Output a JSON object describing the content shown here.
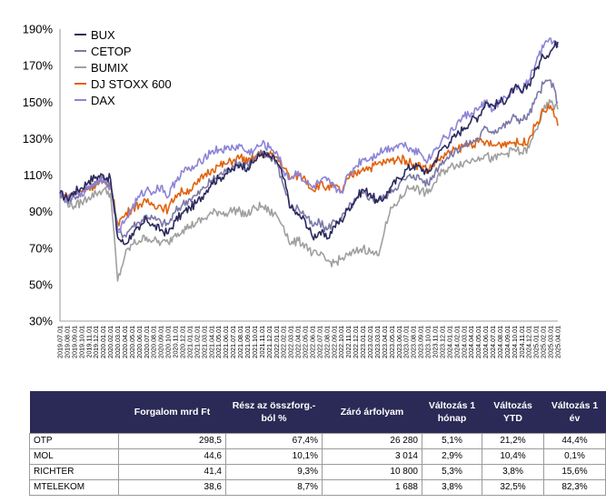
{
  "chart_data": {
    "type": "line",
    "ylim": [
      30,
      190
    ],
    "yticks": [
      "30%",
      "50%",
      "70%",
      "90%",
      "110%",
      "130%",
      "150%",
      "170%",
      "190%"
    ],
    "ytick_values": [
      30,
      50,
      70,
      90,
      110,
      130,
      150,
      170,
      190
    ],
    "grid": false,
    "legend": "top-left",
    "x_labels": [
      "2019.07.01",
      "2019.08.01",
      "2019.09.01",
      "2019.10.01",
      "2019.11.01",
      "2019.12.01",
      "2020.01.01",
      "2020.02.01",
      "2020.03.01",
      "2020.04.01",
      "2020.05.01",
      "2020.06.01",
      "2020.07.01",
      "2020.08.01",
      "2020.09.01",
      "2020.10.01",
      "2020.11.01",
      "2020.12.01",
      "2021.01.01",
      "2021.02.01",
      "2021.03.01",
      "2021.04.01",
      "2021.05.01",
      "2021.06.01",
      "2021.07.01",
      "2021.08.01",
      "2021.09.01",
      "2021.10.01",
      "2021.11.01",
      "2021.12.01",
      "2022.01.01",
      "2022.02.01",
      "2022.03.01",
      "2022.04.01",
      "2022.05.01",
      "2022.06.01",
      "2022.07.01",
      "2022.08.01",
      "2022.09.01",
      "2022.10.01",
      "2022.11.01",
      "2022.12.01",
      "2023.01.01",
      "2023.02.01",
      "2023.03.01",
      "2023.04.01",
      "2023.05.01",
      "2023.06.01",
      "2023.07.01",
      "2023.08.01",
      "2023.09.01",
      "2023.10.01",
      "2023.11.01",
      "2023.12.01",
      "2024.01.01",
      "2024.02.01",
      "2024.03.01",
      "2024.04.01",
      "2024.05.01",
      "2024.06.01",
      "2024.07.01",
      "2024.08.01",
      "2024.09.01",
      "2024.10.01",
      "2024.11.01",
      "2024.12.01",
      "2025.01.01",
      "2025.02.01",
      "2025.03.01",
      "2025.04.01"
    ],
    "x_label_every": 1,
    "series": [
      {
        "name": "BUX",
        "color": "#2b2a5c",
        "values": [
          100,
          97,
          101,
          103,
          107,
          109,
          110,
          108,
          76,
          72,
          78,
          80,
          86,
          82,
          80,
          78,
          85,
          89,
          92,
          95,
          100,
          106,
          108,
          111,
          113,
          116,
          114,
          118,
          122,
          120,
          118,
          108,
          92,
          88,
          85,
          76,
          79,
          75,
          82,
          85,
          92,
          97,
          102,
          100,
          95,
          98,
          104,
          108,
          113,
          115,
          114,
          111,
          118,
          125,
          128,
          132,
          136,
          140,
          142,
          150,
          148,
          150,
          152,
          158,
          155,
          160,
          168,
          175,
          178,
          183
        ]
      },
      {
        "name": "CETOP",
        "color": "#7b78a8",
        "values": [
          100,
          96,
          98,
          100,
          104,
          106,
          108,
          106,
          80,
          77,
          82,
          84,
          88,
          86,
          84,
          83,
          90,
          94,
          97,
          99,
          103,
          107,
          110,
          112,
          115,
          117,
          116,
          119,
          122,
          120,
          118,
          104,
          92,
          92,
          88,
          82,
          84,
          80,
          85,
          86,
          92,
          96,
          100,
          98,
          96,
          98,
          102,
          105,
          108,
          110,
          108,
          105,
          112,
          118,
          120,
          124,
          126,
          128,
          130,
          136,
          134,
          136,
          138,
          142,
          140,
          143,
          152,
          160,
          162,
          150
        ]
      },
      {
        "name": "BUMIX",
        "color": "#a0a0a0",
        "values": [
          100,
          95,
          93,
          95,
          98,
          100,
          102,
          100,
          52,
          66,
          72,
          74,
          76,
          74,
          73,
          73,
          78,
          80,
          82,
          84,
          86,
          89,
          90,
          89,
          91,
          90,
          88,
          92,
          93,
          90,
          88,
          82,
          72,
          74,
          72,
          67,
          66,
          63,
          62,
          64,
          66,
          68,
          70,
          68,
          66,
          80,
          92,
          96,
          102,
          104,
          101,
          100,
          106,
          112,
          114,
          116,
          117,
          118,
          120,
          121,
          118,
          121,
          122,
          124,
          122,
          125,
          135,
          145,
          150,
          146
        ]
      },
      {
        "name": "DJ STOXX 600",
        "color": "#e1620f",
        "values": [
          100,
          98,
          100,
          101,
          103,
          105,
          106,
          104,
          84,
          88,
          92,
          94,
          95,
          94,
          93,
          91,
          99,
          101,
          102,
          105,
          110,
          113,
          115,
          116,
          118,
          120,
          117,
          120,
          122,
          121,
          120,
          114,
          108,
          110,
          108,
          102,
          105,
          103,
          104,
          101,
          108,
          111,
          114,
          114,
          116,
          117,
          118,
          119,
          118,
          116,
          115,
          113,
          117,
          120,
          122,
          124,
          126,
          127,
          128,
          128,
          126,
          127,
          128,
          128,
          127,
          130,
          138,
          145,
          148,
          137
        ]
      },
      {
        "name": "DAX",
        "color": "#8c84d6",
        "values": [
          100,
          96,
          99,
          100,
          104,
          106,
          108,
          104,
          79,
          85,
          92,
          98,
          102,
          101,
          104,
          98,
          107,
          112,
          113,
          115,
          120,
          123,
          124,
          124,
          125,
          126,
          122,
          124,
          127,
          125,
          123,
          112,
          108,
          112,
          106,
          103,
          106,
          107,
          103,
          101,
          110,
          115,
          119,
          119,
          122,
          124,
          125,
          127,
          126,
          124,
          122,
          118,
          124,
          130,
          132,
          138,
          142,
          144,
          146,
          150,
          146,
          150,
          152,
          158,
          156,
          162,
          172,
          180,
          185,
          180
        ]
      }
    ]
  },
  "table": {
    "headers": [
      "",
      "Forgalom mrd Ft",
      "Rész az összforg.-ból %",
      "Záró árfolyam",
      "Változás 1 hónap",
      "Változás YTD",
      "Változás 1 év"
    ],
    "rows": [
      [
        "OTP",
        "298,5",
        "67,4%",
        "26 280",
        "5,1%",
        "21,2%",
        "44,4%"
      ],
      [
        "MOL",
        "44,6",
        "10,1%",
        "3 014",
        "2,9%",
        "10,4%",
        "0,1%"
      ],
      [
        "RICHTER",
        "41,4",
        "9,3%",
        "10 800",
        "5,3%",
        "3,8%",
        "15,6%"
      ],
      [
        "MTELEKOM",
        "38,6",
        "8,7%",
        "1 688",
        "3,8%",
        "32,5%",
        "82,3%"
      ]
    ]
  }
}
